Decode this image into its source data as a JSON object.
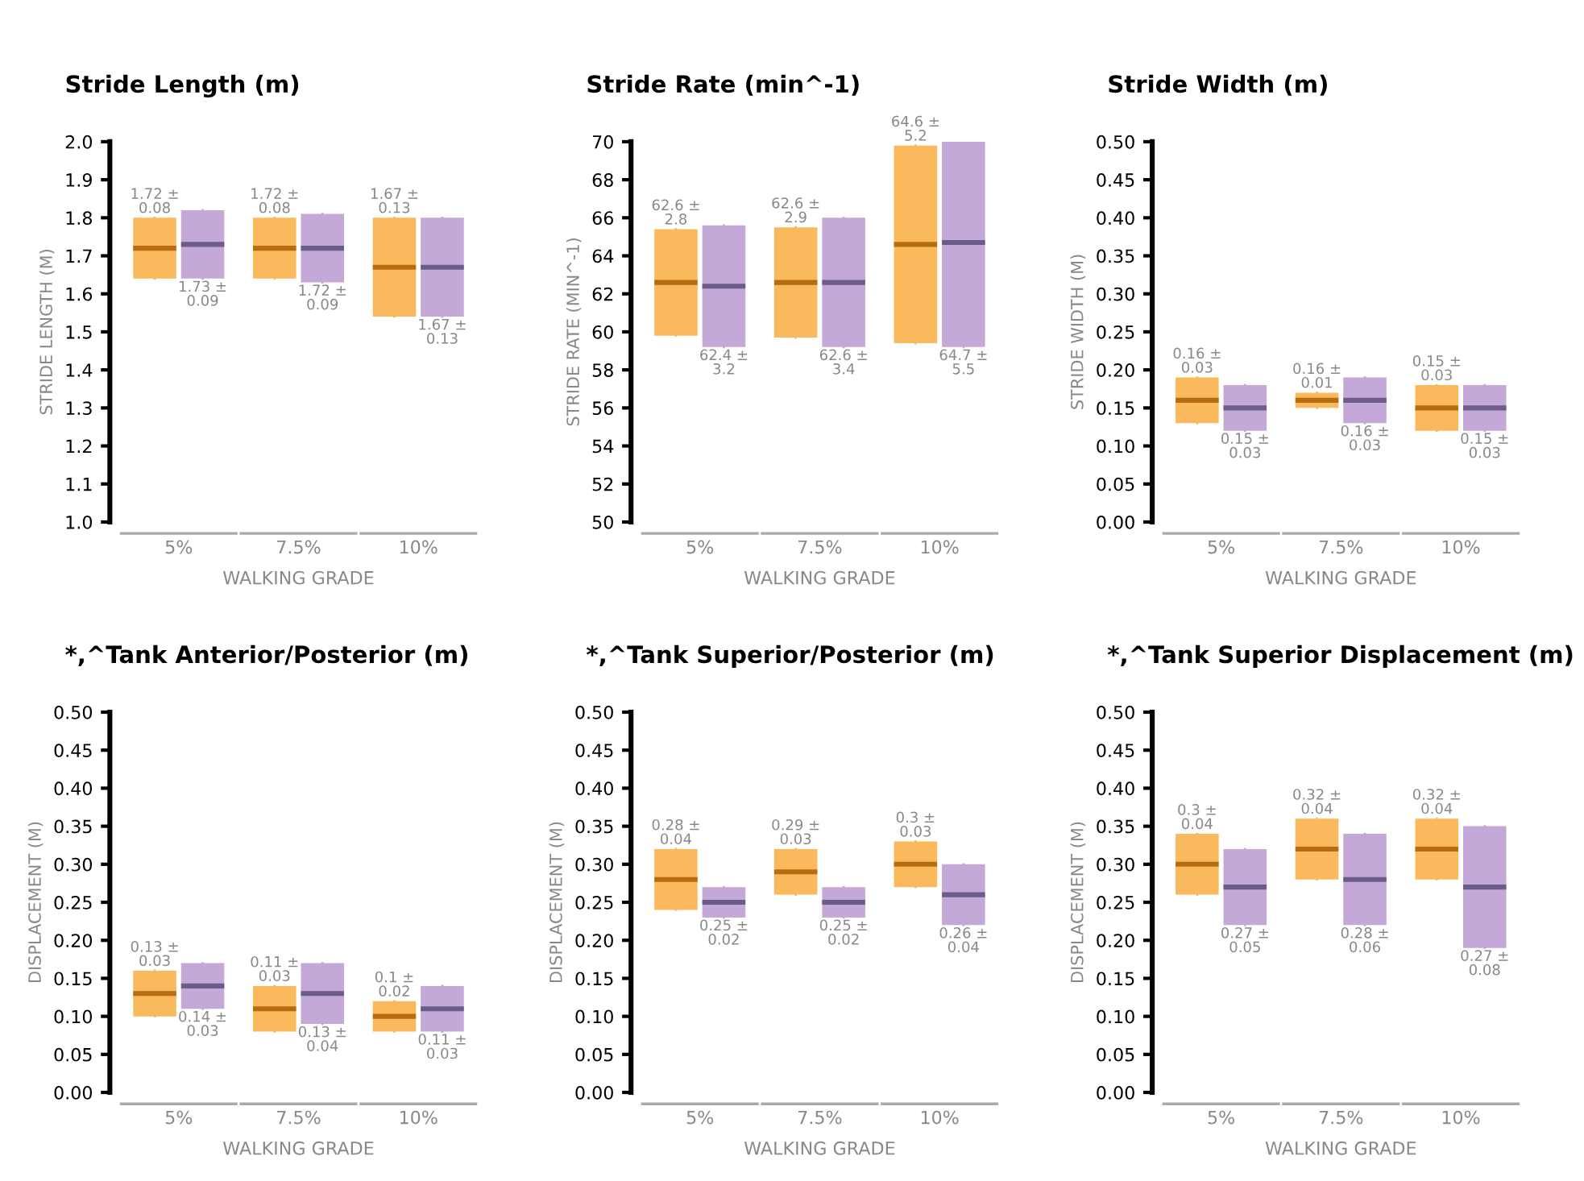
{
  "chart_data": [
    {
      "type": "box",
      "title": "Stride Length (m)",
      "xlabel": "WALKING GRADE",
      "ylabel": "STRIDE LENGTH (M)",
      "categories": [
        "5%",
        "7.5%",
        "10%"
      ],
      "ylim": [
        1.0,
        2.0
      ],
      "yticks": [
        {
          "value": 1.0,
          "label": "1.0"
        },
        1.1,
        1.2,
        1.3,
        1.4,
        1.5,
        1.6,
        1.7,
        1.8,
        1.9,
        {
          "value": 2.0,
          "label": "2.0"
        }
      ],
      "series": [
        {
          "color": "#f9b95c",
          "value_labels": [
            "1.72 ±\n0.08",
            "1.72 ±\n0.08",
            "1.67 ±\n0.13"
          ],
          "boxes": [
            {
              "low": 1.64,
              "q1": 1.64,
              "median": 1.72,
              "q3": 1.8,
              "high": 1.8
            },
            {
              "low": 1.64,
              "q1": 1.64,
              "median": 1.72,
              "q3": 1.8,
              "high": 1.8
            },
            {
              "low": 1.54,
              "q1": 1.54,
              "median": 1.67,
              "q3": 1.8,
              "high": 1.8
            }
          ]
        },
        {
          "color": "#c4a8d8",
          "value_labels": [
            "1.73 ±\n0.09",
            "1.72 ±\n0.09",
            "1.67 ±\n0.13"
          ],
          "boxes": [
            {
              "low": 1.64,
              "q1": 1.64,
              "median": 1.73,
              "q3": 1.82,
              "high": 1.82
            },
            {
              "low": 1.63,
              "q1": 1.63,
              "median": 1.72,
              "q3": 1.81,
              "high": 1.81
            },
            {
              "low": 1.54,
              "q1": 1.54,
              "median": 1.67,
              "q3": 1.8,
              "high": 1.8
            }
          ]
        }
      ]
    },
    {
      "type": "box",
      "title": "Stride Rate (min^-1)",
      "xlabel": "WALKING GRADE",
      "ylabel": "STRIDE RATE (MIN^-1)",
      "categories": [
        "5%",
        "7.5%",
        "10%"
      ],
      "ylim": [
        50,
        70
      ],
      "yticks": [
        50,
        52,
        54,
        56,
        58,
        60,
        62,
        64,
        66,
        68,
        70
      ],
      "series": [
        {
          "color": "#f9b95c",
          "value_labels": [
            "62.6 ±\n2.8",
            "62.6 ±\n2.9",
            "64.6 ±\n5.2"
          ],
          "boxes": [
            {
              "low": 59.8,
              "q1": 59.8,
              "median": 62.6,
              "q3": 65.4,
              "high": 65.4
            },
            {
              "low": 59.7,
              "q1": 59.7,
              "median": 62.6,
              "q3": 65.5,
              "high": 65.5
            },
            {
              "low": 59.4,
              "q1": 59.4,
              "median": 64.6,
              "q3": 69.8,
              "high": 69.8
            }
          ]
        },
        {
          "color": "#c4a8d8",
          "value_labels": [
            "62.4 ±\n3.2",
            "62.6 ±\n3.4",
            "64.7 ±\n5.5"
          ],
          "boxes": [
            {
              "low": 59.2,
              "q1": 59.2,
              "median": 62.4,
              "q3": 65.6,
              "high": 65.6
            },
            {
              "low": 59.2,
              "q1": 59.2,
              "median": 62.6,
              "q3": 66.0,
              "high": 66.0
            },
            {
              "low": 59.2,
              "q1": 59.2,
              "median": 64.7,
              "q3": 70.2,
              "high": 70.2
            }
          ]
        }
      ]
    },
    {
      "type": "box",
      "title": "Stride Width (m)",
      "xlabel": "WALKING GRADE",
      "ylabel": "STRIDE WIDTH (M)",
      "categories": [
        "5%",
        "7.5%",
        "10%"
      ],
      "ylim": [
        0,
        0.5
      ],
      "yticks": [
        {
          "value": 0,
          "label": "0.00"
        },
        0.05,
        {
          "value": 0.1,
          "label": "0.10"
        },
        0.15,
        {
          "value": 0.2,
          "label": "0.20"
        },
        0.25,
        {
          "value": 0.3,
          "label": "0.30"
        },
        0.35,
        {
          "value": 0.4,
          "label": "0.40"
        },
        0.45,
        {
          "value": 0.5,
          "label": "0.50"
        }
      ],
      "series": [
        {
          "color": "#f9b95c",
          "value_labels": [
            "0.16 ±\n0.03",
            "0.16 ±\n0.01",
            "0.15 ±\n0.03"
          ],
          "boxes": [
            {
              "low": 0.13,
              "q1": 0.13,
              "median": 0.16,
              "q3": 0.19,
              "high": 0.19
            },
            {
              "low": 0.15,
              "q1": 0.15,
              "median": 0.16,
              "q3": 0.17,
              "high": 0.17
            },
            {
              "low": 0.12,
              "q1": 0.12,
              "median": 0.15,
              "q3": 0.18,
              "high": 0.18
            }
          ]
        },
        {
          "color": "#c4a8d8",
          "value_labels": [
            "0.15 ±\n0.03",
            "0.16 ±\n0.03",
            "0.15 ±\n0.03"
          ],
          "boxes": [
            {
              "low": 0.12,
              "q1": 0.12,
              "median": 0.15,
              "q3": 0.18,
              "high": 0.18
            },
            {
              "low": 0.13,
              "q1": 0.13,
              "median": 0.16,
              "q3": 0.19,
              "high": 0.19
            },
            {
              "low": 0.12,
              "q1": 0.12,
              "median": 0.15,
              "q3": 0.18,
              "high": 0.18
            }
          ]
        }
      ]
    },
    {
      "type": "box",
      "title": "*,^Tank Anterior/Posterior (m)",
      "xlabel": "WALKING GRADE",
      "ylabel": "DISPLACEMENT (M)",
      "categories": [
        "5%",
        "7.5%",
        "10%"
      ],
      "ylim": [
        0,
        0.5
      ],
      "yticks": [
        {
          "value": 0,
          "label": "0.00"
        },
        0.05,
        {
          "value": 0.1,
          "label": "0.10"
        },
        0.15,
        {
          "value": 0.2,
          "label": "0.20"
        },
        0.25,
        {
          "value": 0.3,
          "label": "0.30"
        },
        0.35,
        {
          "value": 0.4,
          "label": "0.40"
        },
        0.45,
        {
          "value": 0.5,
          "label": "0.50"
        }
      ],
      "series": [
        {
          "color": "#f9b95c",
          "value_labels": [
            "0.13 ±\n0.03",
            "0.11 ±\n0.03",
            "0.1 ±\n0.02"
          ],
          "boxes": [
            {
              "low": 0.1,
              "q1": 0.1,
              "median": 0.13,
              "q3": 0.16,
              "high": 0.16
            },
            {
              "low": 0.08,
              "q1": 0.08,
              "median": 0.11,
              "q3": 0.14,
              "high": 0.14
            },
            {
              "low": 0.08,
              "q1": 0.08,
              "median": 0.1,
              "q3": 0.12,
              "high": 0.12
            }
          ]
        },
        {
          "color": "#c4a8d8",
          "value_labels": [
            "0.14 ±\n0.03",
            "0.13 ±\n0.04",
            "0.11 ±\n0.03"
          ],
          "boxes": [
            {
              "low": 0.11,
              "q1": 0.11,
              "median": 0.14,
              "q3": 0.17,
              "high": 0.17
            },
            {
              "low": 0.09,
              "q1": 0.09,
              "median": 0.13,
              "q3": 0.17,
              "high": 0.17
            },
            {
              "low": 0.08,
              "q1": 0.08,
              "median": 0.11,
              "q3": 0.14,
              "high": 0.14
            }
          ]
        }
      ]
    },
    {
      "type": "box",
      "title": "*,^Tank Superior/Posterior (m)",
      "xlabel": "WALKING GRADE",
      "ylabel": "DISPLACEMENT (M)",
      "categories": [
        "5%",
        "7.5%",
        "10%"
      ],
      "ylim": [
        0,
        0.5
      ],
      "yticks": [
        {
          "value": 0,
          "label": "0.00"
        },
        0.05,
        {
          "value": 0.1,
          "label": "0.10"
        },
        0.15,
        {
          "value": 0.2,
          "label": "0.20"
        },
        0.25,
        {
          "value": 0.3,
          "label": "0.30"
        },
        0.35,
        {
          "value": 0.4,
          "label": "0.40"
        },
        0.45,
        {
          "value": 0.5,
          "label": "0.50"
        }
      ],
      "series": [
        {
          "color": "#f9b95c",
          "value_labels": [
            "0.28 ±\n0.04",
            "0.29 ±\n0.03",
            "0.3 ±\n0.03"
          ],
          "boxes": [
            {
              "low": 0.24,
              "q1": 0.24,
              "median": 0.28,
              "q3": 0.32,
              "high": 0.32
            },
            {
              "low": 0.26,
              "q1": 0.26,
              "median": 0.29,
              "q3": 0.32,
              "high": 0.32
            },
            {
              "low": 0.27,
              "q1": 0.27,
              "median": 0.3,
              "q3": 0.33,
              "high": 0.33
            }
          ]
        },
        {
          "color": "#c4a8d8",
          "value_labels": [
            "0.25 ±\n0.02",
            "0.25 ±\n0.02",
            "0.26 ±\n0.04"
          ],
          "boxes": [
            {
              "low": 0.23,
              "q1": 0.23,
              "median": 0.25,
              "q3": 0.27,
              "high": 0.27
            },
            {
              "low": 0.23,
              "q1": 0.23,
              "median": 0.25,
              "q3": 0.27,
              "high": 0.27
            },
            {
              "low": 0.22,
              "q1": 0.22,
              "median": 0.26,
              "q3": 0.3,
              "high": 0.3
            }
          ]
        }
      ]
    },
    {
      "type": "box",
      "title": "*,^Tank Superior Displacement (m)",
      "xlabel": "WALKING GRADE",
      "ylabel": "DISPLACEMENT (M)",
      "categories": [
        "5%",
        "7.5%",
        "10%"
      ],
      "ylim": [
        0,
        0.5
      ],
      "yticks": [
        {
          "value": 0,
          "label": "0.00"
        },
        0.05,
        {
          "value": 0.1,
          "label": "0.10"
        },
        0.15,
        {
          "value": 0.2,
          "label": "0.20"
        },
        0.25,
        {
          "value": 0.3,
          "label": "0.30"
        },
        0.35,
        {
          "value": 0.4,
          "label": "0.40"
        },
        0.45,
        {
          "value": 0.5,
          "label": "0.50"
        }
      ],
      "series": [
        {
          "color": "#f9b95c",
          "value_labels": [
            "0.3 ±\n0.04",
            "0.32 ±\n0.04",
            "0.32 ±\n0.04"
          ],
          "boxes": [
            {
              "low": 0.26,
              "q1": 0.26,
              "median": 0.3,
              "q3": 0.34,
              "high": 0.34
            },
            {
              "low": 0.28,
              "q1": 0.28,
              "median": 0.32,
              "q3": 0.36,
              "high": 0.36
            },
            {
              "low": 0.28,
              "q1": 0.28,
              "median": 0.32,
              "q3": 0.36,
              "high": 0.36
            }
          ]
        },
        {
          "color": "#c4a8d8",
          "value_labels": [
            "0.27 ±\n0.05",
            "0.28 ±\n0.06",
            "0.27 ±\n0.08"
          ],
          "boxes": [
            {
              "low": 0.22,
              "q1": 0.22,
              "median": 0.27,
              "q3": 0.32,
              "high": 0.32
            },
            {
              "low": 0.22,
              "q1": 0.22,
              "median": 0.28,
              "q3": 0.34,
              "high": 0.34
            },
            {
              "low": 0.19,
              "q1": 0.19,
              "median": 0.27,
              "q3": 0.35,
              "high": 0.35
            }
          ]
        }
      ]
    }
  ]
}
